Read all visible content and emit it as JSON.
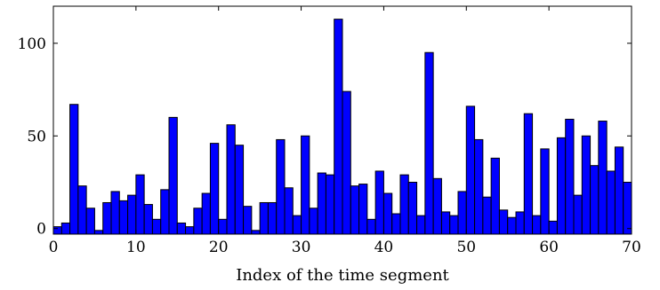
{
  "chart_data": {
    "type": "bar",
    "xlabel": "Index of the time segment",
    "ylabel": "",
    "xlim": [
      0,
      70
    ],
    "ylim": [
      -3,
      120
    ],
    "xticks": [
      0,
      10,
      20,
      30,
      40,
      50,
      60,
      70
    ],
    "yticks": [
      0,
      50,
      100
    ],
    "grid": false,
    "bar_color": "#0000ff",
    "edge_color": "#000000",
    "x_start": 0,
    "bin_width": 1,
    "values": [
      1,
      3,
      67,
      23,
      11,
      -1,
      14,
      20,
      15,
      18,
      29,
      13,
      5,
      21,
      60,
      3,
      1,
      11,
      19,
      46,
      5,
      56,
      45,
      12,
      -1,
      14,
      14,
      48,
      22,
      7,
      50,
      11,
      30,
      29,
      113,
      74,
      23,
      24,
      5,
      31,
      19,
      8,
      29,
      25,
      7,
      95,
      27,
      9,
      7,
      20,
      66,
      48,
      17,
      38,
      10,
      6,
      9,
      62,
      7,
      43,
      4,
      49,
      59,
      18,
      50,
      34,
      58,
      31,
      44,
      25
    ]
  }
}
